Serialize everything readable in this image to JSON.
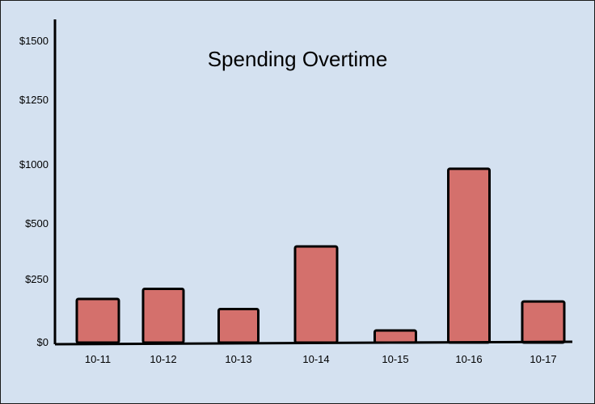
{
  "chart_data": {
    "type": "bar",
    "title": "Spending Overtime",
    "xlabel": "",
    "ylabel": "",
    "categories": [
      "10-11",
      "10-12",
      "10-13",
      "10-14",
      "10-15",
      "10-16",
      "10-17"
    ],
    "values": [
      170,
      210,
      130,
      395,
      45,
      960,
      160
    ],
    "y_ticks": [
      {
        "value": 0,
        "label": "$0"
      },
      {
        "value": 250,
        "label": "$250"
      },
      {
        "value": 500,
        "label": "$500"
      },
      {
        "value": 1000,
        "label": "$1000"
      },
      {
        "value": 1250,
        "label": "$1250"
      },
      {
        "value": 1500,
        "label": "$1500"
      }
    ],
    "ylim": [
      0,
      1500
    ],
    "grid": false,
    "colors": {
      "bar": "#d4706c",
      "background": "#d4e1f0",
      "axis": "#000000"
    }
  }
}
